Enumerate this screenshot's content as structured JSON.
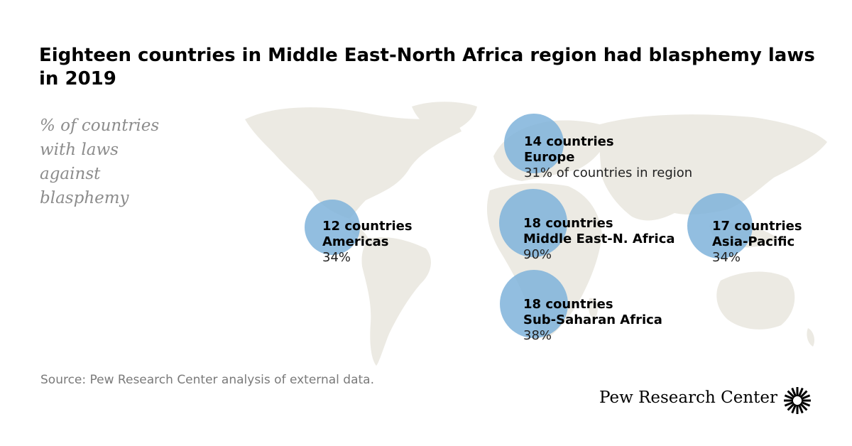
{
  "title": "Eighteen countries in Middle East-North Africa region had blasphemy laws in 2019",
  "subtitle": "% of countries with laws against blasphemy",
  "regions": [
    {
      "count": "14 countries",
      "region": "Europe",
      "percent": "31% of countries in region",
      "countries": 14,
      "percent_value": 31
    },
    {
      "count": "12 countries",
      "region": "Americas",
      "percent": "34%",
      "countries": 12,
      "percent_value": 34
    },
    {
      "count": "18 countries",
      "region": "Middle East-N. Africa",
      "percent": "90%",
      "countries": 18,
      "percent_value": 90
    },
    {
      "count": "17 countries",
      "region": "Asia-Pacific",
      "percent": "34%",
      "countries": 17,
      "percent_value": 34
    },
    {
      "count": "18 countries",
      "region": "Sub-Saharan Africa",
      "percent": "38%",
      "countries": 18,
      "percent_value": 38
    }
  ],
  "source": "Source: Pew Research Center analysis of external data.",
  "brand": "Pew Research Center",
  "colors": {
    "bubble": "#7fb3da",
    "land": "#eceae3",
    "subtitle": "#8c8c8c",
    "source": "#7a7a7a"
  }
}
